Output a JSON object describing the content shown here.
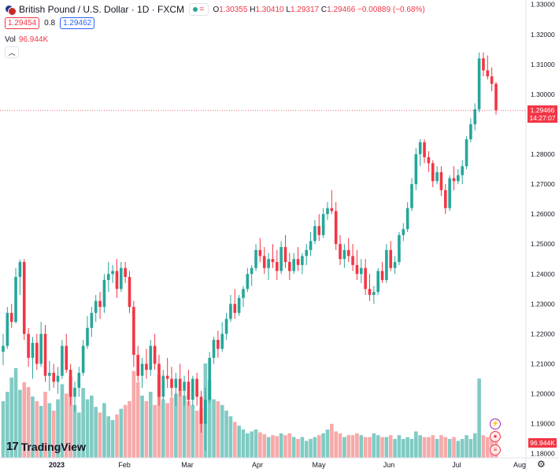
{
  "header": {
    "symbol_name": "British Pound / U.S. Dollar · 1D · FXCM",
    "open_label": "O",
    "open": "1.30355",
    "high_label": "H",
    "high": "1.30410",
    "low_label": "L",
    "low": "1.29317",
    "close_label": "C",
    "close": "1.29466",
    "change": "−0.00889 (−0.68%)"
  },
  "prices": {
    "bid": "1.29454",
    "spread": "0.8",
    "ask": "1.29462"
  },
  "volume_legend": {
    "label": "Vol",
    "value": "96.944K"
  },
  "last_price_label": {
    "price": "1.29466",
    "countdown": "14:27:07"
  },
  "volume_axis_label": "96.944K",
  "brand": "TradingView",
  "colors": {
    "up": "#26a69a",
    "down": "#f23645",
    "up_volume": "#80cbc4",
    "down_volume": "#f7a9a9"
  },
  "chart_data": {
    "type": "candlestick",
    "title": "British Pound / U.S. Dollar · 1D · FXCM",
    "y_ticks": [
      "1.33000",
      "1.32000",
      "1.31000",
      "1.30000",
      "1.28000",
      "1.27000",
      "1.26000",
      "1.25000",
      "1.24000",
      "1.23000",
      "1.22000",
      "1.21000",
      "1.20000",
      "1.19000",
      "1.18000"
    ],
    "x_ticks": [
      "2023",
      "Feb",
      "Mar",
      "Apr",
      "May",
      "Jun",
      "Jul",
      "Aug"
    ],
    "ylim": [
      1.1765,
      1.3315
    ],
    "last_price": 1.29466,
    "grid": false,
    "candles": [
      [
        1.214,
        1.22,
        1.2095,
        1.216
      ],
      [
        1.216,
        1.229,
        1.215,
        1.227
      ],
      [
        1.227,
        1.23,
        1.222,
        1.224
      ],
      [
        1.224,
        1.242,
        1.2235,
        1.239
      ],
      [
        1.239,
        1.2448,
        1.233,
        1.244
      ],
      [
        1.244,
        1.245,
        1.218,
        1.22
      ],
      [
        1.22,
        1.222,
        1.209,
        1.212
      ],
      [
        1.212,
        1.219,
        1.205,
        1.217
      ],
      [
        1.217,
        1.22,
        1.208,
        1.21
      ],
      [
        1.21,
        1.224,
        1.209,
        1.22
      ],
      [
        1.22,
        1.223,
        1.204,
        1.206
      ],
      [
        1.206,
        1.211,
        1.201,
        1.207
      ],
      [
        1.207,
        1.21,
        1.202,
        1.204
      ],
      [
        1.204,
        1.209,
        1.2,
        1.206
      ],
      [
        1.206,
        1.218,
        1.205,
        1.216
      ],
      [
        1.216,
        1.22,
        1.207,
        1.208
      ],
      [
        1.208,
        1.21,
        1.196,
        1.199
      ],
      [
        1.199,
        1.204,
        1.194,
        1.202
      ],
      [
        1.202,
        1.209,
        1.199,
        1.207
      ],
      [
        1.207,
        1.218,
        1.206,
        1.216
      ],
      [
        1.216,
        1.226,
        1.215,
        1.222
      ],
      [
        1.222,
        1.229,
        1.219,
        1.227
      ],
      [
        1.227,
        1.233,
        1.224,
        1.231
      ],
      [
        1.231,
        1.234,
        1.225,
        1.229
      ],
      [
        1.229,
        1.24,
        1.227,
        1.238
      ],
      [
        1.238,
        1.244,
        1.234,
        1.24
      ],
      [
        1.24,
        1.243,
        1.237,
        1.241
      ],
      [
        1.241,
        1.245,
        1.232,
        1.235
      ],
      [
        1.235,
        1.244,
        1.234,
        1.242
      ],
      [
        1.242,
        1.244,
        1.237,
        1.239
      ],
      [
        1.239,
        1.241,
        1.227,
        1.229
      ],
      [
        1.229,
        1.231,
        1.209,
        1.213
      ],
      [
        1.213,
        1.216,
        1.204,
        1.206
      ],
      [
        1.206,
        1.212,
        1.202,
        1.21
      ],
      [
        1.21,
        1.215,
        1.205,
        1.208
      ],
      [
        1.208,
        1.218,
        1.206,
        1.216
      ],
      [
        1.216,
        1.22,
        1.208,
        1.21
      ],
      [
        1.21,
        1.213,
        1.196,
        1.199
      ],
      [
        1.199,
        1.208,
        1.198,
        1.206
      ],
      [
        1.206,
        1.212,
        1.202,
        1.205
      ],
      [
        1.205,
        1.209,
        1.199,
        1.202
      ],
      [
        1.202,
        1.207,
        1.196,
        1.205
      ],
      [
        1.205,
        1.21,
        1.199,
        1.201
      ],
      [
        1.201,
        1.206,
        1.196,
        1.204
      ],
      [
        1.204,
        1.208,
        1.196,
        1.198
      ],
      [
        1.198,
        1.206,
        1.196,
        1.205
      ],
      [
        1.205,
        1.207,
        1.196,
        1.199
      ],
      [
        1.199,
        1.201,
        1.187,
        1.19
      ],
      [
        1.19,
        1.202,
        1.181,
        1.198
      ],
      [
        1.198,
        1.214,
        1.197,
        1.212
      ],
      [
        1.212,
        1.219,
        1.21,
        1.218
      ],
      [
        1.218,
        1.221,
        1.212,
        1.215
      ],
      [
        1.215,
        1.224,
        1.214,
        1.22
      ],
      [
        1.22,
        1.227,
        1.218,
        1.225
      ],
      [
        1.225,
        1.233,
        1.224,
        1.23
      ],
      [
        1.23,
        1.235,
        1.225,
        1.227
      ],
      [
        1.227,
        1.233,
        1.226,
        1.232
      ],
      [
        1.232,
        1.236,
        1.229,
        1.235
      ],
      [
        1.235,
        1.242,
        1.234,
        1.24
      ],
      [
        1.24,
        1.243,
        1.236,
        1.242
      ],
      [
        1.242,
        1.25,
        1.241,
        1.248
      ],
      [
        1.248,
        1.252,
        1.244,
        1.246
      ],
      [
        1.246,
        1.249,
        1.24,
        1.242
      ],
      [
        1.242,
        1.247,
        1.238,
        1.245
      ],
      [
        1.245,
        1.25,
        1.242,
        1.244
      ],
      [
        1.244,
        1.248,
        1.238,
        1.241
      ],
      [
        1.241,
        1.251,
        1.24,
        1.249
      ],
      [
        1.249,
        1.253,
        1.242,
        1.244
      ],
      [
        1.244,
        1.247,
        1.238,
        1.241
      ],
      [
        1.241,
        1.247,
        1.24,
        1.245
      ],
      [
        1.245,
        1.249,
        1.241,
        1.243
      ],
      [
        1.243,
        1.247,
        1.24,
        1.246
      ],
      [
        1.246,
        1.25,
        1.243,
        1.248
      ],
      [
        1.248,
        1.254,
        1.246,
        1.251
      ],
      [
        1.251,
        1.258,
        1.25,
        1.256
      ],
      [
        1.256,
        1.26,
        1.251,
        1.253
      ],
      [
        1.253,
        1.262,
        1.252,
        1.26
      ],
      [
        1.26,
        1.264,
        1.258,
        1.262
      ],
      [
        1.262,
        1.268,
        1.26,
        1.261
      ],
      [
        1.261,
        1.264,
        1.248,
        1.25
      ],
      [
        1.25,
        1.253,
        1.243,
        1.245
      ],
      [
        1.245,
        1.25,
        1.242,
        1.248
      ],
      [
        1.248,
        1.252,
        1.244,
        1.246
      ],
      [
        1.246,
        1.25,
        1.241,
        1.243
      ],
      [
        1.243,
        1.248,
        1.238,
        1.24
      ],
      [
        1.24,
        1.245,
        1.237,
        1.242
      ],
      [
        1.242,
        1.245,
        1.233,
        1.235
      ],
      [
        1.235,
        1.24,
        1.231,
        1.233
      ],
      [
        1.233,
        1.236,
        1.23,
        1.234
      ],
      [
        1.234,
        1.242,
        1.233,
        1.241
      ],
      [
        1.241,
        1.244,
        1.237,
        1.238
      ],
      [
        1.238,
        1.25,
        1.237,
        1.248
      ],
      [
        1.248,
        1.251,
        1.241,
        1.242
      ],
      [
        1.242,
        1.246,
        1.24,
        1.244
      ],
      [
        1.244,
        1.254,
        1.243,
        1.253
      ],
      [
        1.253,
        1.257,
        1.251,
        1.255
      ],
      [
        1.255,
        1.264,
        1.254,
        1.262
      ],
      [
        1.262,
        1.272,
        1.261,
        1.27
      ],
      [
        1.27,
        1.282,
        1.268,
        1.28
      ],
      [
        1.28,
        1.285,
        1.276,
        1.284
      ],
      [
        1.284,
        1.285,
        1.277,
        1.279
      ],
      [
        1.279,
        1.281,
        1.274,
        1.277
      ],
      [
        1.277,
        1.278,
        1.269,
        1.271
      ],
      [
        1.271,
        1.276,
        1.27,
        1.274
      ],
      [
        1.274,
        1.276,
        1.266,
        1.268
      ],
      [
        1.268,
        1.27,
        1.26,
        1.262
      ],
      [
        1.262,
        1.273,
        1.261,
        1.272
      ],
      [
        1.272,
        1.276,
        1.268,
        1.271
      ],
      [
        1.271,
        1.275,
        1.27,
        1.273
      ],
      [
        1.273,
        1.278,
        1.27,
        1.276
      ],
      [
        1.276,
        1.286,
        1.275,
        1.285
      ],
      [
        1.285,
        1.292,
        1.284,
        1.29
      ],
      [
        1.29,
        1.297,
        1.288,
        1.295
      ],
      [
        1.295,
        1.314,
        1.294,
        1.312
      ],
      [
        1.312,
        1.314,
        1.306,
        1.308
      ],
      [
        1.308,
        1.313,
        1.305,
        1.306
      ],
      [
        1.306,
        1.309,
        1.301,
        1.3035
      ],
      [
        1.3035,
        1.3041,
        1.2932,
        1.2947
      ]
    ],
    "volumes": [
      {
        "v": 60,
        "up": true
      },
      {
        "v": 70,
        "up": true
      },
      {
        "v": 85,
        "up": true
      },
      {
        "v": 95,
        "up": true
      },
      {
        "v": 72,
        "up": true
      },
      {
        "v": 80,
        "up": false
      },
      {
        "v": 75,
        "up": false
      },
      {
        "v": 65,
        "up": true
      },
      {
        "v": 60,
        "up": false
      },
      {
        "v": 55,
        "up": true
      },
      {
        "v": 70,
        "up": false
      },
      {
        "v": 58,
        "up": true
      },
      {
        "v": 50,
        "up": false
      },
      {
        "v": 62,
        "up": true
      },
      {
        "v": 78,
        "up": true
      },
      {
        "v": 68,
        "up": false
      },
      {
        "v": 86,
        "up": false
      },
      {
        "v": 56,
        "up": true
      },
      {
        "v": 48,
        "up": true
      },
      {
        "v": 74,
        "up": true
      },
      {
        "v": 62,
        "up": true
      },
      {
        "v": 66,
        "up": true
      },
      {
        "v": 54,
        "up": true
      },
      {
        "v": 48,
        "up": false
      },
      {
        "v": 58,
        "up": true
      },
      {
        "v": 44,
        "up": true
      },
      {
        "v": 40,
        "up": true
      },
      {
        "v": 46,
        "up": false
      },
      {
        "v": 52,
        "up": true
      },
      {
        "v": 56,
        "up": false
      },
      {
        "v": 60,
        "up": false
      },
      {
        "v": 92,
        "up": false
      },
      {
        "v": 80,
        "up": false
      },
      {
        "v": 66,
        "up": true
      },
      {
        "v": 60,
        "up": false
      },
      {
        "v": 70,
        "up": true
      },
      {
        "v": 56,
        "up": false
      },
      {
        "v": 88,
        "up": false
      },
      {
        "v": 62,
        "up": true
      },
      {
        "v": 58,
        "up": false
      },
      {
        "v": 64,
        "up": false
      },
      {
        "v": 68,
        "up": true
      },
      {
        "v": 72,
        "up": false
      },
      {
        "v": 66,
        "up": true
      },
      {
        "v": 60,
        "up": false
      },
      {
        "v": 56,
        "up": true
      },
      {
        "v": 50,
        "up": false
      },
      {
        "v": 52,
        "up": false
      },
      {
        "v": 100,
        "up": true
      },
      {
        "v": 82,
        "up": true
      },
      {
        "v": 62,
        "up": true
      },
      {
        "v": 60,
        "up": false
      },
      {
        "v": 56,
        "up": true
      },
      {
        "v": 50,
        "up": true
      },
      {
        "v": 44,
        "up": true
      },
      {
        "v": 38,
        "up": false
      },
      {
        "v": 34,
        "up": true
      },
      {
        "v": 30,
        "up": true
      },
      {
        "v": 26,
        "up": true
      },
      {
        "v": 28,
        "up": true
      },
      {
        "v": 30,
        "up": true
      },
      {
        "v": 27,
        "up": false
      },
      {
        "v": 25,
        "up": false
      },
      {
        "v": 22,
        "up": true
      },
      {
        "v": 24,
        "up": false
      },
      {
        "v": 23,
        "up": false
      },
      {
        "v": 26,
        "up": true
      },
      {
        "v": 24,
        "up": false
      },
      {
        "v": 26,
        "up": false
      },
      {
        "v": 22,
        "up": true
      },
      {
        "v": 20,
        "up": false
      },
      {
        "v": 22,
        "up": true
      },
      {
        "v": 18,
        "up": true
      },
      {
        "v": 20,
        "up": true
      },
      {
        "v": 22,
        "up": true
      },
      {
        "v": 24,
        "up": false
      },
      {
        "v": 26,
        "up": true
      },
      {
        "v": 30,
        "up": true
      },
      {
        "v": 36,
        "up": false
      },
      {
        "v": 28,
        "up": false
      },
      {
        "v": 26,
        "up": false
      },
      {
        "v": 22,
        "up": true
      },
      {
        "v": 24,
        "up": false
      },
      {
        "v": 24,
        "up": false
      },
      {
        "v": 26,
        "up": false
      },
      {
        "v": 24,
        "up": true
      },
      {
        "v": 22,
        "up": false
      },
      {
        "v": 22,
        "up": false
      },
      {
        "v": 26,
        "up": true
      },
      {
        "v": 24,
        "up": true
      },
      {
        "v": 22,
        "up": false
      },
      {
        "v": 22,
        "up": true
      },
      {
        "v": 24,
        "up": false
      },
      {
        "v": 20,
        "up": true
      },
      {
        "v": 24,
        "up": true
      },
      {
        "v": 20,
        "up": true
      },
      {
        "v": 22,
        "up": true
      },
      {
        "v": 20,
        "up": true
      },
      {
        "v": 28,
        "up": true
      },
      {
        "v": 24,
        "up": true
      },
      {
        "v": 22,
        "up": false
      },
      {
        "v": 22,
        "up": false
      },
      {
        "v": 24,
        "up": false
      },
      {
        "v": 20,
        "up": true
      },
      {
        "v": 24,
        "up": false
      },
      {
        "v": 22,
        "up": false
      },
      {
        "v": 20,
        "up": true
      },
      {
        "v": 22,
        "up": false
      },
      {
        "v": 18,
        "up": true
      },
      {
        "v": 20,
        "up": true
      },
      {
        "v": 24,
        "up": true
      },
      {
        "v": 20,
        "up": true
      },
      {
        "v": 26,
        "up": true
      },
      {
        "v": 84,
        "up": true
      },
      {
        "v": 24,
        "up": false
      },
      {
        "v": 22,
        "up": false
      },
      {
        "v": 24,
        "up": false
      },
      {
        "v": 18,
        "up": false
      }
    ]
  }
}
